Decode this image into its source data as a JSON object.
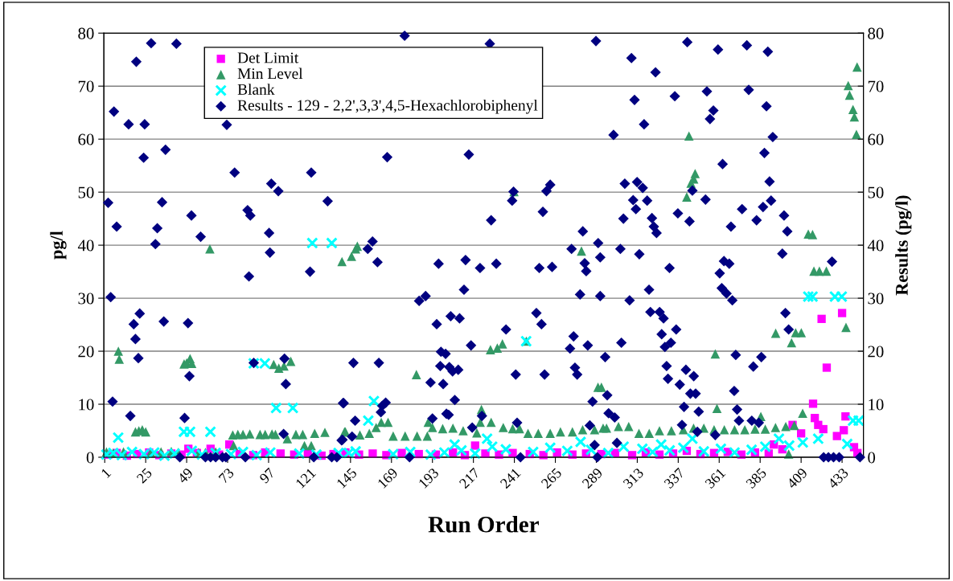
{
  "chart_data": {
    "type": "scatter",
    "xlabel": "Run Order",
    "ylabel": "pg/l",
    "y2label": "Results (pg/l)",
    "xlim": [
      0.5,
      445.5
    ],
    "xticks": [
      1,
      25,
      49,
      73,
      97,
      121,
      145,
      169,
      193,
      217,
      241,
      265,
      289,
      313,
      337,
      361,
      385,
      409,
      433
    ],
    "ylim": [
      0,
      80
    ],
    "yticks": [
      0,
      10,
      20,
      30,
      40,
      50,
      60,
      70,
      80
    ],
    "y2lim": [
      0,
      80
    ],
    "y2ticks": [
      0,
      10,
      20,
      30,
      40,
      50,
      60,
      70,
      80
    ],
    "grid": "y",
    "legend": "top",
    "series": [
      {
        "name": "Det Limit",
        "color": "#ff00ff",
        "marker": "square",
        "x": [
          3,
          8,
          14,
          20,
          27,
          33,
          40,
          46,
          50,
          55,
          63,
          68,
          74,
          80,
          88,
          95,
          104,
          112,
          120,
          128,
          135,
          142,
          150,
          158,
          166,
          175,
          185,
          195,
          205,
          212,
          218,
          224,
          232,
          240,
          250,
          258,
          266,
          275,
          283,
          292,
          300,
          310,
          318,
          326,
          334,
          342,
          350,
          358,
          366,
          374,
          382,
          390,
          393,
          398,
          404,
          409,
          416,
          417,
          419,
          421,
          422,
          424,
          430,
          433,
          434,
          435,
          440,
          442
        ],
        "values": [
          0.5,
          0.8,
          0.3,
          0.6,
          0.9,
          0.4,
          0.7,
          0.5,
          1.6,
          0.8,
          1.6,
          0.5,
          2.4,
          0.6,
          0.4,
          0.9,
          0.7,
          0.5,
          0.8,
          0.3,
          0.6,
          0.9,
          0.5,
          0.7,
          0.4,
          0.8,
          0.6,
          0.5,
          0.9,
          0.4,
          2.2,
          0.7,
          0.5,
          0.8,
          0.6,
          0.4,
          0.9,
          0.5,
          0.7,
          0.6,
          0.8,
          0.4,
          0.9,
          0.5,
          0.7,
          1.2,
          0.6,
          0.8,
          1.0,
          0.5,
          0.9,
          0.7,
          2.4,
          1.5,
          6.1,
          4.5,
          10.1,
          7.4,
          6.1,
          26.1,
          5.3,
          16.9,
          4.0,
          27.2,
          5.1,
          7.7,
          1.9,
          0.8
        ]
      },
      {
        "name": "Min Level",
        "color": "#339966",
        "marker": "triangle",
        "x": [
          2,
          6,
          9,
          9.5,
          12,
          19,
          21,
          23,
          25,
          28,
          34,
          40,
          44,
          47.5,
          49,
          51,
          52,
          56,
          60,
          62.6,
          66,
          76,
          76.5,
          79,
          82,
          86,
          92,
          95,
          99,
          100,
          101,
          103,
          106,
          108,
          110,
          113,
          117,
          118,
          122,
          124,
          130,
          140,
          141.5,
          142,
          145.6,
          148,
          149,
          150.5,
          156,
          160,
          163,
          167,
          170,
          177,
          183.6,
          184,
          190,
          190.5,
          193,
          199,
          205,
          211,
          219,
          221.7,
          221,
          227,
          227.4,
          231,
          234,
          234.5,
          240,
          240.8,
          244,
          248,
          249,
          255,
          262,
          268,
          275,
          280.3,
          281,
          288,
          290,
          292,
          293,
          295,
          302,
          308,
          314,
          320,
          326,
          333,
          340,
          342,
          343.3,
          344.5,
          346.1,
          346.9,
          346,
          352,
          358,
          358.7,
          359.7,
          364,
          370,
          376,
          382,
          385.4,
          388,
          394,
          394.1,
          400,
          401.7,
          403.4,
          405,
          405.8,
          409.1,
          409.9,
          413.2,
          415.7,
          416.5,
          419.7,
          423.8,
          435.3,
          436.6,
          437.4,
          439.4,
          440.2,
          441.4,
          441.8
        ],
        "values": [
          1.0,
          0.8,
          20.0,
          18.5,
          1.0,
          4.8,
          5.0,
          5.2,
          4.8,
          0.9,
          1.0,
          1.1,
          0.9,
          17.6,
          17.8,
          18.6,
          17.7,
          0.9,
          0.9,
          39.3,
          1.0,
          4.2,
          2.2,
          4.3,
          4.3,
          4.4,
          4.3,
          4.3,
          4.4,
          17.5,
          4.3,
          16.8,
          17.2,
          3.5,
          18.1,
          4.3,
          4.3,
          2.2,
          2.2,
          4.5,
          4.7,
          36.9,
          4.8,
          4.8,
          37.9,
          39.3,
          39.8,
          4.2,
          4.5,
          5.6,
          6.6,
          6.6,
          4.0,
          4.0,
          15.6,
          4.0,
          4.0,
          6.6,
          5.6,
          5.4,
          5.5,
          5.0,
          4.6,
          9.0,
          6.6,
          20.3,
          6.6,
          20.6,
          21.4,
          5.6,
          5.4,
          50.1,
          5.4,
          21.9,
          4.5,
          4.5,
          4.5,
          4.8,
          4.8,
          38.9,
          5.2,
          5.2,
          13.2,
          13.2,
          5.5,
          5.5,
          5.8,
          5.8,
          4.5,
          4.5,
          5.0,
          5.0,
          5.2,
          49.1,
          60.6,
          51.7,
          52.5,
          53.5,
          5.5,
          5.5,
          5.2,
          19.5,
          9.2,
          5.2,
          5.2,
          5.2,
          5.3,
          7.7,
          5.3,
          5.6,
          23.4,
          5.8,
          0.6,
          21.6,
          6.0,
          23.5,
          23.5,
          8.3,
          42.1,
          42.0,
          35.1,
          35.1,
          35.1,
          24.5,
          70.1,
          68.3,
          65.6,
          64.2,
          60.9,
          73.6
        ]
      },
      {
        "name": "Blank",
        "color": "#00ffff",
        "marker": "cross",
        "x": [
          2,
          6,
          8.9,
          11,
          17,
          24,
          30,
          36,
          42,
          47.4,
          51,
          52,
          58,
          62.9,
          66,
          75,
          82,
          88.3,
          90,
          94.8,
          98,
          101.4,
          111.2,
          115,
          122.6,
          125,
          134,
          138,
          144,
          148,
          155.4,
          158.7,
          170,
          180,
          192,
          200,
          206,
          210,
          218,
          225,
          228,
          236,
          247.9,
          252,
          262,
          272,
          279.8,
          286,
          296,
          305,
          316,
          322,
          327,
          332,
          340,
          345.3,
          352,
          362,
          370,
          380,
          388,
          396,
          402,
          410,
          413.2,
          415.7,
          419,
          428.8,
          432.8,
          436,
          439.4,
          442.7
        ],
        "values": [
          0.5,
          0.8,
          3.7,
          0.4,
          1.0,
          0.6,
          0.9,
          0.3,
          0.7,
          4.8,
          4.8,
          1.2,
          0.5,
          4.8,
          0.8,
          0.6,
          1.0,
          17.7,
          0.4,
          17.7,
          0.9,
          9.3,
          9.3,
          0.7,
          40.4,
          0.5,
          40.4,
          0.8,
          0.8,
          1.1,
          6.9,
          10.6,
          0.6,
          1.0,
          0.5,
          0.9,
          2.4,
          1.3,
          0.7,
          3.5,
          2.0,
          1.5,
          21.9,
          1.0,
          1.8,
          1.2,
          2.9,
          1.4,
          0.8,
          2.0,
          1.6,
          1.0,
          2.4,
          1.3,
          1.8,
          3.5,
          1.1,
          1.6,
          0.9,
          1.4,
          2.0,
          3.5,
          2.2,
          2.8,
          30.3,
          30.3,
          3.5,
          30.3,
          30.3,
          2.5,
          6.9,
          6.9
        ]
      },
      {
        "name": "Results - 129 - 2,2',3,3',4,5-Hexachlorobiphenyl",
        "color": "#000080",
        "marker": "diamond",
        "axis": "y2",
        "x": [
          3,
          4.5,
          5.6,
          6.4,
          8,
          15,
          16,
          18,
          19,
          19.5,
          20.7,
          21.5,
          23.8,
          24.4,
          28.2,
          30.7,
          31.8,
          34.6,
          35.6,
          36.6,
          43,
          45,
          47.8,
          49.8,
          50.6,
          51.8,
          57.2,
          60,
          63,
          66,
          70,
          72,
          72.5,
          77.1,
          83.4,
          84.7,
          85.5,
          86.3,
          88.3,
          97.3,
          97.8,
          98.6,
          102.7,
          105.8,
          106.3,
          107.1,
          121.3,
          122,
          123.5,
          131.6,
          134,
          137,
          139.8,
          140.3,
          140.6,
          141,
          145.9,
          146.7,
          147.7,
          155.1,
          157.9,
          160.8,
          161.6,
          162.8,
          163.6,
          165.6,
          166.5,
          176.7,
          179.6,
          185.2,
          189,
          191.9,
          193,
          195.5,
          196.6,
          197.6,
          198,
          199.3,
          200.7,
          201.2,
          202.5,
          202.9,
          203.7,
          204.8,
          206.1,
          208.1,
          208.9,
          211.5,
          212.4,
          214.3,
          215.6,
          216.3,
          220.9,
          222,
          226.6,
          227.4,
          230.4,
          236.1,
          239.7,
          240.5,
          241.8,
          242.6,
          244.6,
          253.9,
          255.6,
          256.9,
          257.7,
          258.7,
          259.8,
          262,
          263.1,
          273.6,
          274.5,
          275.7,
          276.5,
          277.8,
          279.5,
          281.1,
          282.2,
          283.1,
          284,
          285.2,
          286.8,
          288,
          288.8,
          289.6,
          290.1,
          291.3,
          291.3,
          294.2,
          295.4,
          296.2,
          299.1,
          299.8,
          301.1,
          303.1,
          303.7,
          304.9,
          305.7,
          308.5,
          309.6,
          310.6,
          311.4,
          312.2,
          312.9,
          314.2,
          316.2,
          317,
          318.8,
          319.9,
          320.7,
          321.6,
          322.7,
          323.7,
          324.3,
          326.1,
          327.3,
          328.4,
          329.2,
          330.2,
          331,
          331.9,
          332.7,
          335,
          335.8,
          336.8,
          337.9,
          339.2,
          340.4,
          341.5,
          342.3,
          343.6,
          344.1,
          345.3,
          346.1,
          347.2,
          348.2,
          349,
          353,
          353.8,
          355.6,
          357.6,
          358.7,
          360.3,
          361.3,
          362.5,
          363,
          363.8,
          365.3,
          366.9,
          367.9,
          368.7,
          369.8,
          370.7,
          371.5,
          372.6,
          374.4,
          377.2,
          378.3,
          380.1,
          381,
          382.9,
          384.2,
          385.7,
          386.7,
          387.5,
          388.7,
          389.5,
          390.5,
          391.4,
          392.4,
          398,
          399,
          399.8,
          400.9,
          401.7,
          422.2,
          425,
          427.1,
          428,
          431.3,
          443.5
        ],
        "values": [
          48.0,
          30.2,
          10.5,
          65.2,
          43.5,
          62.8,
          7.8,
          25.1,
          22.3,
          74.6,
          18.7,
          27.1,
          56.5,
          62.8,
          78.1,
          40.2,
          43.2,
          48.1,
          25.6,
          58.0,
          78.0,
          0,
          7.4,
          25.3,
          15.3,
          45.6,
          41.6,
          0,
          0,
          0,
          0,
          0,
          62.7,
          53.7,
          0,
          46.6,
          34.1,
          45.6,
          17.8,
          42.3,
          38.6,
          51.6,
          50.2,
          4.4,
          18.6,
          13.8,
          35.0,
          53.7,
          0,
          48.3,
          0,
          0,
          3.2,
          3.3,
          10.2,
          10.2,
          3.9,
          17.8,
          6.9,
          39.3,
          40.7,
          36.8,
          17.8,
          8.5,
          9.7,
          10.3,
          56.6,
          79.5,
          0,
          29.5,
          30.4,
          14.1,
          7.3,
          25.1,
          36.5,
          17.2,
          19.9,
          13.8,
          19.5,
          8.2,
          8.0,
          17.0,
          26.6,
          16.2,
          10.8,
          16.5,
          26.2,
          31.6,
          37.2,
          57.1,
          21.1,
          5.6,
          35.7,
          7.8,
          78.0,
          44.7,
          36.5,
          24.1,
          48.4,
          50.1,
          15.6,
          6.5,
          0,
          27.2,
          35.7,
          25.1,
          46.3,
          15.6,
          50.2,
          51.4,
          35.9,
          20.5,
          39.3,
          22.8,
          16.9,
          15.6,
          30.7,
          42.6,
          36.6,
          35.1,
          21.1,
          6.0,
          10.5,
          2.3,
          78.5,
          0,
          40.4,
          37.7,
          30.4,
          18.9,
          11.7,
          8.3,
          60.8,
          7.5,
          2.7,
          39.3,
          21.6,
          45.0,
          51.6,
          29.6,
          75.3,
          48.5,
          67.4,
          46.8,
          51.9,
          38.3,
          50.8,
          62.8,
          48.4,
          31.6,
          27.4,
          45.1,
          43.5,
          72.6,
          42.3,
          27.4,
          23.2,
          26.2,
          20.8,
          17.2,
          14.8,
          35.7,
          21.6,
          68.1,
          24.1,
          46.0,
          13.7,
          6.1,
          9.5,
          16.5,
          78.3,
          44.5,
          12.0,
          50.3,
          15.3,
          12.0,
          4.8,
          8.6,
          48.6,
          69.0,
          63.8,
          65.4,
          4.2,
          76.9,
          34.7,
          31.9,
          55.3,
          37.0,
          30.9,
          36.5,
          43.5,
          29.6,
          12.5,
          19.3,
          9.0,
          6.9,
          46.8,
          77.7,
          69.3,
          6.9,
          17.1,
          44.7,
          6.5,
          18.9,
          47.2,
          57.4,
          66.2,
          76.5,
          52.0,
          48.4,
          60.4,
          38.4,
          45.6,
          27.2,
          42.6,
          24.1,
          0,
          0,
          36.9,
          0,
          0,
          0
        ]
      }
    ]
  }
}
